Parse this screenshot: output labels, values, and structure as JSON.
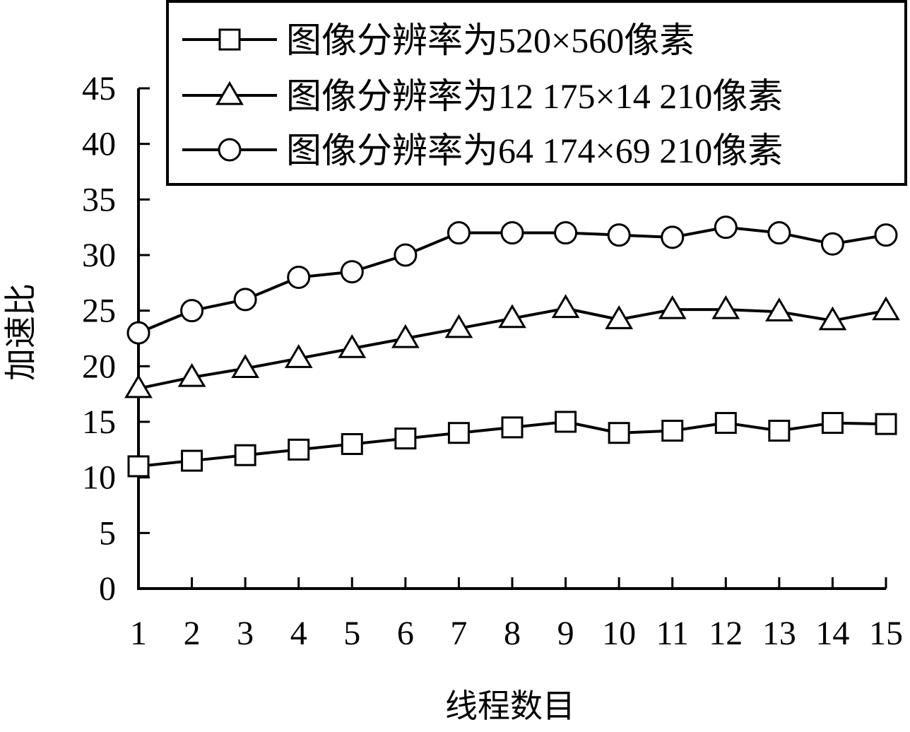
{
  "chart_data": {
    "type": "line",
    "title": "",
    "xlabel": "线程数目",
    "ylabel": "加速比",
    "x": [
      1,
      2,
      3,
      4,
      5,
      6,
      7,
      8,
      9,
      10,
      11,
      12,
      13,
      14,
      15
    ],
    "x_tick_labels": [
      "1",
      "2",
      "3",
      "4",
      "5",
      "6",
      "7",
      "8",
      "9",
      "10",
      "11",
      "12",
      "13",
      "14",
      "15"
    ],
    "y_ticks": [
      0,
      5,
      10,
      15,
      20,
      25,
      30,
      35,
      40,
      45
    ],
    "y_tick_labels": [
      "0",
      "5",
      "10",
      "15",
      "20",
      "25",
      "30",
      "35",
      "40",
      "45"
    ],
    "xlim": [
      1,
      15
    ],
    "ylim": [
      0,
      45
    ],
    "grid": false,
    "legend_position": "top-right",
    "series": [
      {
        "name": "图像分辨率为520×560像素",
        "marker": "square",
        "color": "#000000",
        "values": [
          11,
          11.5,
          12,
          12.5,
          13,
          13.5,
          14,
          14.5,
          15,
          14,
          14.2,
          14.9,
          14.2,
          14.9,
          14.8
        ]
      },
      {
        "name": "图像分辨率为12 175×14 210像素",
        "marker": "triangle",
        "color": "#000000",
        "values": [
          18,
          19,
          19.8,
          20.7,
          21.6,
          22.5,
          23.4,
          24.3,
          25.2,
          24.2,
          25.1,
          25.1,
          24.9,
          24.1,
          25
        ]
      },
      {
        "name": "图像分辨率为64 174×69 210像素",
        "marker": "circle",
        "color": "#000000",
        "values": [
          23,
          25,
          26,
          28,
          28.5,
          30,
          32,
          32,
          32,
          31.8,
          31.6,
          32.5,
          32,
          31,
          31.8
        ]
      }
    ]
  }
}
